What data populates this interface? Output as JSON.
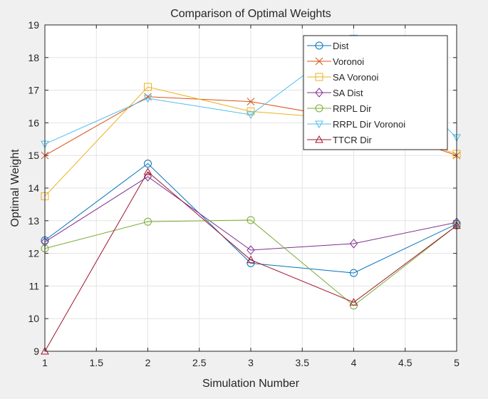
{
  "chart_data": {
    "type": "line",
    "title": "Comparison of Optimal Weights",
    "xlabel": "Simulation Number",
    "ylabel": "Optimal Weight",
    "xlim": [
      1,
      5
    ],
    "ylim": [
      9,
      19
    ],
    "xticks": [
      "1",
      "1.5",
      "2",
      "2.5",
      "3",
      "3.5",
      "4",
      "4.5",
      "5"
    ],
    "yticks": [
      "9",
      "10",
      "11",
      "12",
      "13",
      "14",
      "15",
      "16",
      "17",
      "18",
      "19"
    ],
    "grid": true,
    "legend_position": "top-right",
    "x": [
      1,
      2,
      3,
      4,
      5
    ],
    "series": [
      {
        "name": "Dist",
        "values": [
          12.4,
          14.75,
          11.7,
          11.4,
          12.9
        ],
        "color": "#0072bd",
        "marker": "circle"
      },
      {
        "name": "Voronoi",
        "values": [
          15.0,
          16.8,
          16.65,
          16.1,
          15.0
        ],
        "color": "#d95319",
        "marker": "x"
      },
      {
        "name": "SA Voronoi",
        "values": [
          13.75,
          17.1,
          16.35,
          16.1,
          15.05
        ],
        "color": "#edb120",
        "marker": "square"
      },
      {
        "name": "SA Dist",
        "values": [
          12.35,
          14.35,
          12.1,
          12.3,
          12.95
        ],
        "color": "#7e2f8e",
        "marker": "diamond"
      },
      {
        "name": "RRPL Dir",
        "values": [
          12.15,
          12.97,
          13.02,
          10.4,
          12.85
        ],
        "color": "#77ac30",
        "marker": "circle"
      },
      {
        "name": "RRPL Dir Voronoi",
        "values": [
          15.35,
          16.75,
          16.25,
          18.6,
          15.55
        ],
        "color": "#4dbeee",
        "marker": "triangle-down"
      },
      {
        "name": "TTCR Dir",
        "values": [
          9.0,
          14.5,
          11.8,
          10.5,
          12.85
        ],
        "color": "#a2142f",
        "marker": "triangle-up"
      }
    ]
  }
}
